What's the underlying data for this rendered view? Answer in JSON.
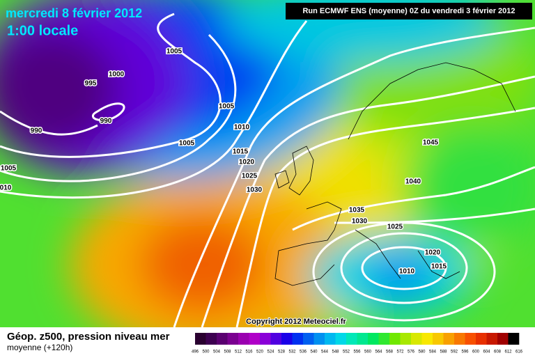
{
  "header": {
    "date": "mercredi 8 février 2012",
    "time": "1:00 locale",
    "run": "Run ECMWF ENS (moyenne) 0Z du vendredi 3 février 2012"
  },
  "isobar_labels": [
    "1005",
    "1000",
    "995",
    "990",
    "990",
    "1005",
    "010",
    "1005",
    "1010",
    "1005",
    "1015",
    "1020",
    "1025",
    "1030",
    "1045",
    "1040",
    "1035",
    "1030",
    "1025",
    "1020",
    "1010",
    "1015"
  ],
  "copyright": "Copyright 2012 Meteociel.fr",
  "footer": {
    "title": "Géop. z500, pression niveau mer",
    "subtitle": "moyenne  (+120h)"
  },
  "legend": {
    "labels": [
      "496",
      "500",
      "504",
      "508",
      "512",
      "516",
      "520",
      "524",
      "528",
      "532",
      "536",
      "540",
      "544",
      "548",
      "552",
      "556",
      "560",
      "564",
      "568",
      "572",
      "576",
      "580",
      "584",
      "588",
      "592",
      "596",
      "600",
      "604",
      "608",
      "612",
      "616"
    ],
    "colors": [
      "#2a0030",
      "#3d0050",
      "#5a0070",
      "#7a0090",
      "#9a00b0",
      "#b000c8",
      "#8a00d8",
      "#5000e0",
      "#1a00e8",
      "#0030f0",
      "#0060f0",
      "#0090f0",
      "#00b8f0",
      "#00d8e8",
      "#00e8b8",
      "#00e890",
      "#00e860",
      "#30e830",
      "#70e800",
      "#a8e800",
      "#d8e800",
      "#f8e800",
      "#f8c800",
      "#f8a000",
      "#f87800",
      "#f85000",
      "#e83000",
      "#c81800",
      "#a00000",
      "#000000"
    ]
  }
}
